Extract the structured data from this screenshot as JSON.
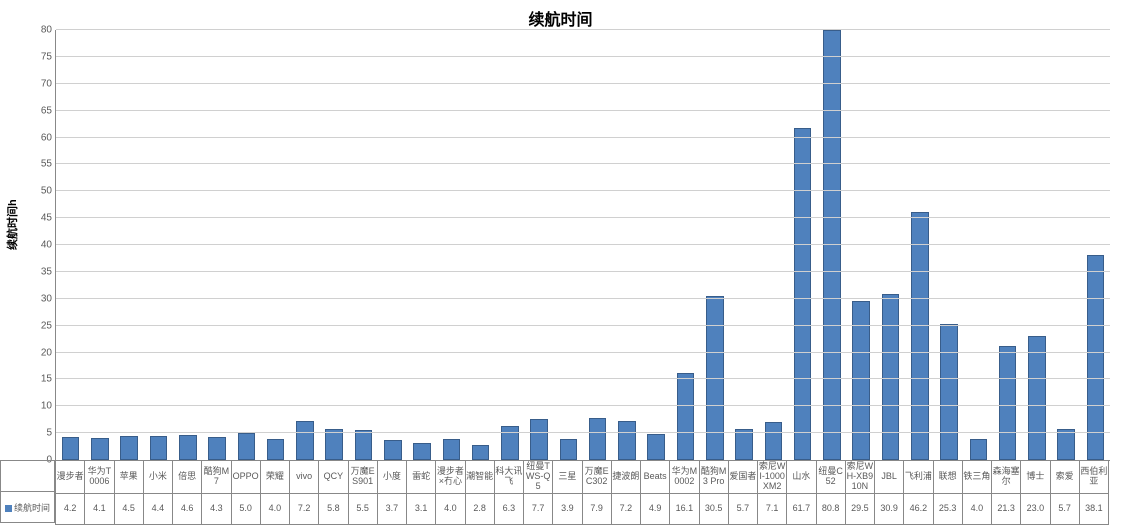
{
  "chart": {
    "type": "bar",
    "title": "续航时间",
    "title_fontsize": 16,
    "ylabel": "续航时间h",
    "ylabel_fontsize": 11,
    "ylim_min": 0,
    "ylim_max": 80,
    "ytick_step": 5,
    "bar_color": "#4f81bd",
    "bar_border_color": "#385d8a",
    "grid_color": "#d0d0d0",
    "axis_color": "#888888",
    "background_color": "#ffffff",
    "tick_label_color": "#595959",
    "series_name": "续航时间",
    "categories": [
      "漫步者",
      "华为T0006",
      "苹果",
      "小米",
      "倍思",
      "酷狗M7",
      "OPPO",
      "荣耀",
      "vivo",
      "QCY",
      "万魔ES901",
      "小度",
      "雷蛇",
      "漫步者×冇心",
      "潮智能",
      "科大讯飞",
      "纽曼TWS-Q5",
      "三星",
      "万魔EC302",
      "捷波朗",
      "Beats",
      "华为M0002",
      "酷狗M3 Pro",
      "爱国者",
      "索尼WI-1000XM2",
      "山水",
      "纽曼C52",
      "索尼WH-XB910N",
      "JBL",
      "飞利浦",
      "联想",
      "铁三角",
      "森海塞尔",
      "博士",
      "索爱",
      "西伯利亚"
    ],
    "values": [
      4.2,
      4.1,
      4.5,
      4.4,
      4.6,
      4.3,
      5.0,
      4.0,
      7.2,
      5.8,
      5.5,
      3.7,
      3.1,
      4.0,
      2.8,
      6.3,
      7.7,
      3.9,
      7.9,
      7.2,
      4.9,
      16.1,
      30.5,
      5.7,
      7.1,
      61.7,
      80.8,
      29.5,
      30.9,
      46.2,
      25.3,
      4.0,
      21.3,
      23.0,
      5.7,
      38.1
    ]
  }
}
